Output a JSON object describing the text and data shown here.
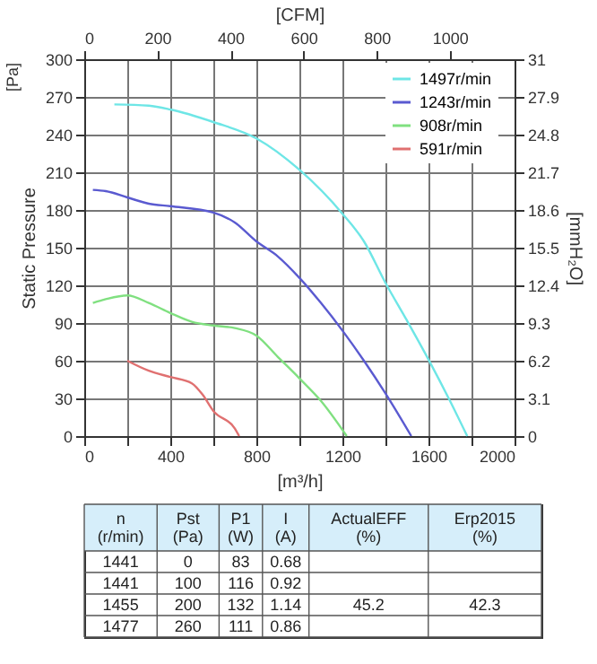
{
  "chart_data": {
    "type": "line",
    "xlabel": "[m³/h]",
    "x2label": "[CFM]",
    "ylabel": "Static Pressure",
    "y2label": "[mmH₂O]",
    "xlim": [
      0,
      2000
    ],
    "xticks": [
      0,
      {
        "value": 200,
        "label": null
      },
      400,
      {
        "value": 600,
        "label": null
      },
      800,
      {
        "value": 1000,
        "label": null
      },
      1200,
      {
        "value": 1400,
        "label": null
      },
      1600,
      {
        "value": 1800,
        "label": null
      },
      2000
    ],
    "x2lim": [
      0,
      1177.2
    ],
    "x2ticks": [
      0,
      200,
      400,
      600,
      800,
      1000
    ],
    "ylim": [
      0,
      300
    ],
    "yticks": [
      0,
      30,
      60,
      90,
      120,
      150,
      180,
      210,
      240,
      270,
      300
    ],
    "y2lim": [
      0,
      31
    ],
    "y2ticks": [
      0,
      3.1,
      6.2,
      9.3,
      12.4,
      15.5,
      18.6,
      21.7,
      24.8,
      27.9,
      31
    ],
    "grid": true,
    "legend": "top right",
    "series": [
      {
        "name": "1497r/min",
        "color": "#6ee6e6",
        "x": [
          140,
          300,
          400,
          600,
          800,
          1000,
          1200,
          1300,
          1400,
          1500,
          1600,
          1700,
          1780
        ],
        "values": [
          264,
          263,
          260,
          250,
          237,
          212,
          177,
          155,
          122,
          92,
          61,
          28,
          0
        ]
      },
      {
        "name": "1243r/min",
        "color": "#5a5ad0",
        "x": [
          40,
          100,
          200,
          300,
          400,
          600,
          700,
          800,
          900,
          1000,
          1100,
          1200,
          1300,
          1400,
          1520
        ],
        "values": [
          196,
          195,
          190,
          185,
          183,
          178,
          170,
          155,
          143,
          126,
          106,
          84,
          60,
          34,
          0
        ]
      },
      {
        "name": "908r/min",
        "color": "#80e080",
        "x": [
          40,
          100,
          200,
          300,
          400,
          500,
          600,
          700,
          800,
          900,
          1000,
          1100,
          1220
        ],
        "values": [
          106,
          109,
          112,
          106,
          98,
          91,
          88,
          86,
          80,
          63,
          46,
          28,
          0
        ]
      },
      {
        "name": "591r/min",
        "color": "#e07070",
        "x": [
          200,
          300,
          400,
          500,
          550,
          600,
          700,
          720
        ],
        "values": [
          60,
          52,
          47,
          42,
          33,
          20,
          6,
          0
        ]
      }
    ],
    "annotations": [
      "[Pa]",
      "n\n(r/min)",
      "Pst\n(Pa)",
      "P1\n(W)",
      "I\n(A)",
      "ActualEFF\n(%)",
      "Erp2015\n(%)",
      "1441",
      "0",
      "83",
      "0.68",
      "1441",
      "100",
      "116",
      "0.92",
      "1455",
      "200",
      "132",
      "1.14",
      "1477",
      "260",
      "111",
      "0.86",
      "45.2",
      "42.3"
    ]
  }
}
